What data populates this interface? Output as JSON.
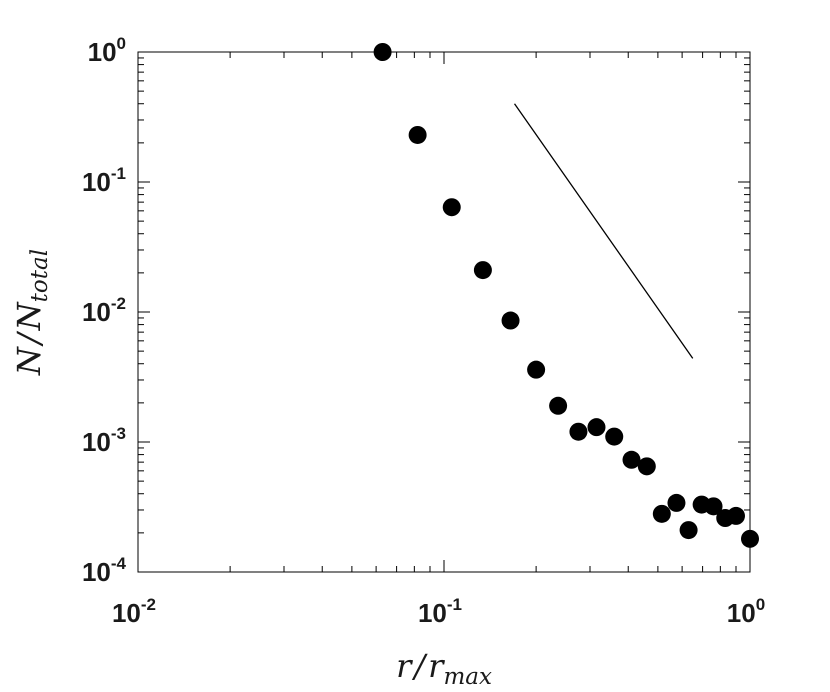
{
  "chart_data": {
    "type": "scatter",
    "xlabel": {
      "main": "r",
      "sep": "/",
      "main2": "r",
      "sub": "max"
    },
    "ylabel": {
      "main": "N",
      "sep": "/",
      "main2": "N",
      "sub": "total"
    },
    "xscale": "log",
    "yscale": "log",
    "xlim": [
      0.01,
      1
    ],
    "ylim": [
      0.0001,
      1
    ],
    "grid": false,
    "xticks": [
      {
        "value": 0.01,
        "base": "10",
        "exp": "-2"
      },
      {
        "value": 0.1,
        "base": "10",
        "exp": "-1"
      },
      {
        "value": 1,
        "base": "10",
        "exp": "0"
      }
    ],
    "yticks": [
      {
        "value": 0.0001,
        "base": "10",
        "exp": "-4"
      },
      {
        "value": 0.001,
        "base": "10",
        "exp": "-3"
      },
      {
        "value": 0.01,
        "base": "10",
        "exp": "-2"
      },
      {
        "value": 0.1,
        "base": "10",
        "exp": "-1"
      },
      {
        "value": 1,
        "base": "10",
        "exp": "0"
      }
    ],
    "series": [
      {
        "marker": "filled-circle",
        "color": "#000000",
        "points": [
          {
            "x": 0.063,
            "y": 1.0
          },
          {
            "x": 0.082,
            "y": 0.23
          },
          {
            "x": 0.106,
            "y": 0.064
          },
          {
            "x": 0.134,
            "y": 0.021
          },
          {
            "x": 0.165,
            "y": 0.0086
          },
          {
            "x": 0.2,
            "y": 0.0036
          },
          {
            "x": 0.236,
            "y": 0.0019
          },
          {
            "x": 0.275,
            "y": 0.0012
          },
          {
            "x": 0.315,
            "y": 0.0013
          },
          {
            "x": 0.36,
            "y": 0.0011
          },
          {
            "x": 0.41,
            "y": 0.00073
          },
          {
            "x": 0.46,
            "y": 0.00065
          },
          {
            "x": 0.515,
            "y": 0.00028
          },
          {
            "x": 0.575,
            "y": 0.00034
          },
          {
            "x": 0.63,
            "y": 0.00021
          },
          {
            "x": 0.695,
            "y": 0.00033
          },
          {
            "x": 0.76,
            "y": 0.00032
          },
          {
            "x": 0.83,
            "y": 0.00026
          },
          {
            "x": 0.9,
            "y": 0.00027
          },
          {
            "x": 1.0,
            "y": 0.00018
          }
        ]
      }
    ],
    "reference_line": {
      "color": "#000000",
      "x": [
        0.17,
        0.65
      ],
      "y": [
        0.4,
        0.0044
      ]
    }
  }
}
